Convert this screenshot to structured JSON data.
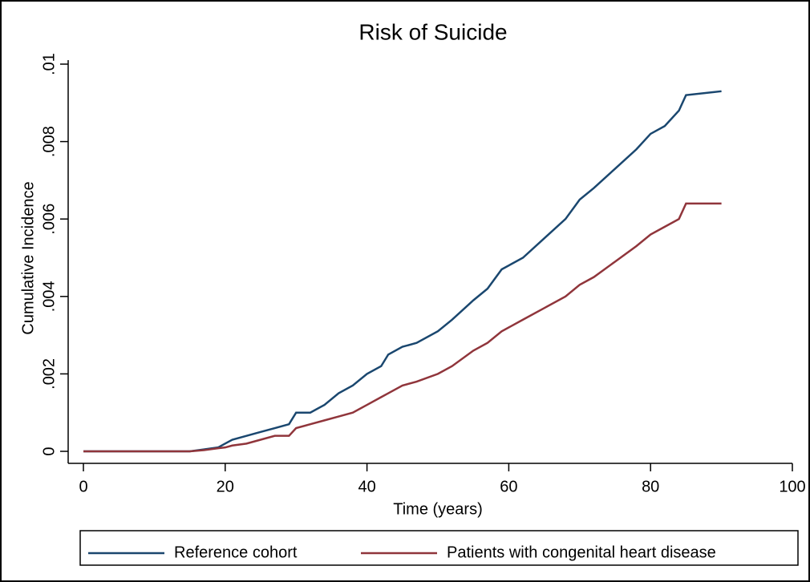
{
  "chart_data": {
    "type": "line",
    "title": "Risk of Suicide",
    "x_label": "Time (years)",
    "y_label": "Cumulative Incidence",
    "xlim": [
      0,
      100
    ],
    "xticks": [
      0,
      20,
      40,
      60,
      80,
      100
    ],
    "ylim": [
      0,
      0.01
    ],
    "yticks": [
      0,
      {
        "value": 0.002,
        "label": ".002"
      },
      {
        "value": 0.004,
        "label": ".004"
      },
      {
        "value": 0.006,
        "label": ".006"
      },
      {
        "value": 0.008,
        "label": ".008"
      },
      {
        "value": 0.01,
        "label": ".01"
      }
    ],
    "legend": "bottom",
    "x": [
      0,
      15,
      17,
      19,
      20,
      21,
      23,
      25,
      27,
      29,
      30,
      32,
      34,
      36,
      38,
      40,
      42,
      43,
      45,
      47,
      50,
      52,
      55,
      57,
      59,
      62,
      65,
      68,
      70,
      72,
      75,
      78,
      80,
      82,
      84,
      85,
      90
    ],
    "series": [
      {
        "name": "Reference cohort",
        "color": "#1a476f",
        "values": [
          0,
          0,
          5e-05,
          0.0001,
          0.0002,
          0.0003,
          0.0004,
          0.0005,
          0.0006,
          0.0007,
          0.001,
          0.001,
          0.0012,
          0.0015,
          0.0017,
          0.002,
          0.0022,
          0.0025,
          0.0027,
          0.0028,
          0.0031,
          0.0034,
          0.0039,
          0.0042,
          0.0047,
          0.005,
          0.0055,
          0.006,
          0.0065,
          0.0068,
          0.0073,
          0.0078,
          0.0082,
          0.0084,
          0.0088,
          0.0092,
          0.0093
        ]
      },
      {
        "name": "Patients with congenital heart disease",
        "color": "#90353b",
        "values": [
          0,
          0,
          3e-05,
          8e-05,
          0.0001,
          0.00015,
          0.0002,
          0.0003,
          0.0004,
          0.0004,
          0.0006,
          0.0007,
          0.0008,
          0.0009,
          0.001,
          0.0012,
          0.0014,
          0.0015,
          0.0017,
          0.0018,
          0.002,
          0.0022,
          0.0026,
          0.0028,
          0.0031,
          0.0034,
          0.0037,
          0.004,
          0.0043,
          0.0045,
          0.0049,
          0.0053,
          0.0056,
          0.0058,
          0.006,
          0.0064,
          0.0064
        ]
      }
    ]
  }
}
